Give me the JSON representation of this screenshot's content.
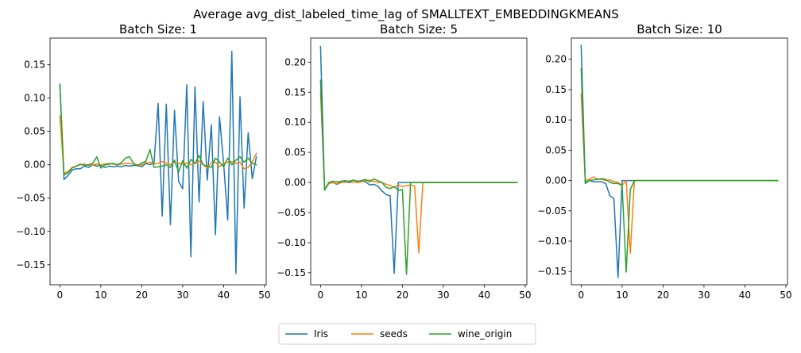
{
  "figure": {
    "suptitle": "Average avg_dist_labeled_time_lag of SMALLTEXT_EMBEDDINGKMEANS"
  },
  "legend": {
    "placement": "bottom-center",
    "items": [
      {
        "name": "Iris",
        "color": "#1f77b4"
      },
      {
        "name": "seeds",
        "color": "#ff7f0e"
      },
      {
        "name": "wine_origin",
        "color": "#2ca02c"
      }
    ]
  },
  "chart_data": [
    {
      "type": "line",
      "title": "Batch Size: 1",
      "xlabel": "",
      "ylabel": "",
      "xlim": [
        -2.4,
        50.4
      ],
      "ylim": [
        -0.18,
        0.19
      ],
      "xticks": [
        0,
        10,
        20,
        30,
        40,
        50
      ],
      "yticks": [
        -0.15,
        -0.1,
        -0.05,
        0.0,
        0.05,
        0.1,
        0.15
      ],
      "ytick_labels": [
        "−0.15",
        "−0.10",
        "−0.05",
        "0.00",
        "0.05",
        "0.10",
        "0.15"
      ],
      "x": [
        0,
        1,
        2,
        3,
        4,
        5,
        6,
        7,
        8,
        9,
        10,
        11,
        12,
        13,
        14,
        15,
        16,
        17,
        18,
        19,
        20,
        21,
        22,
        23,
        24,
        25,
        26,
        27,
        28,
        29,
        30,
        31,
        32,
        33,
        34,
        35,
        36,
        37,
        38,
        39,
        40,
        41,
        42,
        43,
        44,
        45,
        46,
        47,
        48
      ],
      "series": [
        {
          "name": "Iris",
          "color": "#1f77b4",
          "values": [
            0.12,
            -0.022,
            -0.016,
            -0.008,
            -0.006,
            -0.006,
            -0.002,
            -0.004,
            0.0,
            -0.002,
            -0.001,
            -0.004,
            -0.002,
            -0.003,
            -0.002,
            -0.003,
            -0.001,
            -0.002,
            -0.001,
            -0.001,
            -0.003,
            0.002,
            0.0,
            0.003,
            0.092,
            -0.077,
            0.091,
            -0.09,
            0.082,
            -0.025,
            -0.036,
            0.12,
            -0.138,
            0.117,
            -0.056,
            0.095,
            -0.023,
            0.06,
            -0.105,
            0.072,
            0.002,
            -0.083,
            0.17,
            -0.163,
            0.102,
            -0.065,
            0.048,
            -0.021,
            0.012
          ]
        },
        {
          "name": "seeds",
          "color": "#ff7f0e",
          "values": [
            0.073,
            -0.013,
            -0.01,
            -0.004,
            -0.002,
            0.0,
            0.001,
            -0.001,
            0.0,
            0.001,
            0.0,
            0.001,
            0.002,
            0.001,
            0.0,
            0.001,
            0.002,
            0.002,
            0.001,
            0.0,
            0.0,
            0.003,
            0.004,
            0.001,
            0.002,
            0.005,
            0.003,
            0.0,
            0.004,
            0.002,
            0.001,
            0.003,
            0.0,
            0.002,
            0.006,
            0.0,
            -0.005,
            0.003,
            0.004,
            -0.003,
            0.002,
            0.004,
            0.005,
            0.002,
            0.004,
            -0.006,
            -0.004,
            0.004,
            0.017
          ]
        },
        {
          "name": "wine_origin",
          "color": "#2ca02c",
          "values": [
            0.121,
            -0.015,
            -0.012,
            -0.005,
            -0.002,
            0.001,
            -0.001,
            0.0,
            0.002,
            0.012,
            -0.005,
            0.0,
            0.001,
            0.002,
            0.0,
            0.003,
            0.01,
            0.012,
            0.002,
            -0.002,
            0.003,
            0.005,
            0.023,
            -0.004,
            -0.003,
            -0.002,
            0.0,
            -0.004,
            0.007,
            -0.011,
            0.006,
            -0.005,
            0.008,
            0.002,
            0.014,
            0.0,
            -0.002,
            -0.004,
            0.01,
            0.004,
            -0.003,
            0.01,
            0.0,
            0.007,
            0.012,
            0.004,
            0.01,
            0.002,
            0.0
          ]
        }
      ]
    },
    {
      "type": "line",
      "title": "Batch Size: 5",
      "xlabel": "",
      "ylabel": "",
      "xlim": [
        -2.4,
        50.4
      ],
      "ylim": [
        -0.17,
        0.24
      ],
      "xticks": [
        0,
        10,
        20,
        30,
        40,
        50
      ],
      "yticks": [
        -0.15,
        -0.1,
        -0.05,
        0.0,
        0.05,
        0.1,
        0.15,
        0.2
      ],
      "ytick_labels": [
        "−0.15",
        "−0.10",
        "−0.05",
        "0.00",
        "0.05",
        "0.10",
        "0.15",
        "0.20"
      ],
      "x": [
        0,
        1,
        2,
        3,
        4,
        5,
        6,
        7,
        8,
        9,
        10,
        11,
        12,
        13,
        14,
        15,
        16,
        17,
        18,
        19,
        20,
        21,
        22,
        23,
        24,
        25,
        26,
        27,
        28,
        29,
        30,
        31,
        32,
        33,
        34,
        35,
        36,
        37,
        38,
        39,
        40,
        41,
        42,
        43,
        44,
        45,
        46,
        47,
        48
      ],
      "series": [
        {
          "name": "Iris",
          "color": "#1f77b4",
          "values": [
            0.226,
            -0.012,
            -0.002,
            0.0,
            -0.003,
            0.0,
            0.001,
            0.0,
            0.001,
            0.0,
            0.002,
            0.001,
            -0.004,
            -0.003,
            -0.006,
            -0.014,
            -0.02,
            -0.022,
            -0.151,
            0.0,
            0.0,
            0.0,
            0.0,
            0.0,
            0.0,
            0.0,
            0.0,
            0.0,
            0.0,
            0.0,
            0.0,
            0.0,
            0.0,
            0.0,
            0.0,
            0.0,
            0.0,
            0.0,
            0.0,
            0.0,
            0.0,
            0.0,
            0.0,
            0.0,
            0.0,
            0.0,
            0.0,
            0.0,
            0.0
          ]
        },
        {
          "name": "seeds",
          "color": "#ff7f0e",
          "values": [
            0.15,
            -0.01,
            -0.002,
            0.0,
            -0.002,
            0.001,
            0.0,
            0.002,
            0.001,
            0.0,
            0.001,
            0.003,
            0.004,
            0.002,
            0.0,
            0.0,
            -0.003,
            -0.005,
            -0.008,
            -0.004,
            -0.007,
            -0.005,
            -0.004,
            -0.006,
            -0.117,
            0.0,
            0.0,
            0.0,
            0.0,
            0.0,
            0.0,
            0.0,
            0.0,
            0.0,
            0.0,
            0.0,
            0.0,
            0.0,
            0.0,
            0.0,
            0.0,
            0.0,
            0.0,
            0.0,
            0.0,
            0.0,
            0.0,
            0.0,
            0.0
          ]
        },
        {
          "name": "wine_origin",
          "color": "#2ca02c",
          "values": [
            0.17,
            -0.013,
            0.0,
            0.002,
            0.001,
            0.002,
            0.003,
            0.002,
            0.004,
            0.002,
            0.003,
            0.005,
            0.001,
            0.006,
            0.003,
            0.0,
            -0.008,
            -0.01,
            -0.007,
            -0.013,
            -0.012,
            -0.153,
            0.0,
            0.0,
            0.0,
            0.0,
            0.0,
            0.0,
            0.0,
            0.0,
            0.0,
            0.0,
            0.0,
            0.0,
            0.0,
            0.0,
            0.0,
            0.0,
            0.0,
            0.0,
            0.0,
            0.0,
            0.0,
            0.0,
            0.0,
            0.0,
            0.0,
            0.0,
            0.0
          ]
        }
      ]
    },
    {
      "type": "line",
      "title": "Batch Size: 10",
      "xlabel": "",
      "ylabel": "",
      "xlim": [
        -2.4,
        50.4
      ],
      "ylim": [
        -0.172,
        0.235
      ],
      "xticks": [
        0,
        10,
        20,
        30,
        40,
        50
      ],
      "yticks": [
        -0.15,
        -0.1,
        -0.05,
        0.0,
        0.05,
        0.1,
        0.15,
        0.2
      ],
      "ytick_labels": [
        "−0.15",
        "−0.10",
        "−0.05",
        "0.00",
        "0.05",
        "0.10",
        "0.15",
        "0.20"
      ],
      "x": [
        0,
        1,
        2,
        3,
        4,
        5,
        6,
        7,
        8,
        9,
        10,
        11,
        12,
        13,
        14,
        15,
        16,
        17,
        18,
        19,
        20,
        21,
        22,
        23,
        24,
        25,
        26,
        27,
        28,
        29,
        30,
        31,
        32,
        33,
        34,
        35,
        36,
        37,
        38,
        39,
        40,
        41,
        42,
        43,
        44,
        45,
        46,
        47,
        48
      ],
      "series": [
        {
          "name": "Iris",
          "color": "#1f77b4",
          "values": [
            0.223,
            -0.003,
            0.0,
            -0.002,
            -0.002,
            -0.002,
            -0.005,
            -0.025,
            -0.03,
            -0.16,
            0.0,
            0.0,
            0.0,
            0.0,
            0.0,
            0.0,
            0.0,
            0.0,
            0.0,
            0.0,
            0.0,
            0.0,
            0.0,
            0.0,
            0.0,
            0.0,
            0.0,
            0.0,
            0.0,
            0.0,
            0.0,
            0.0,
            0.0,
            0.0,
            0.0,
            0.0,
            0.0,
            0.0,
            0.0,
            0.0,
            0.0,
            0.0,
            0.0,
            0.0,
            0.0,
            0.0,
            0.0,
            0.0,
            0.0
          ]
        },
        {
          "name": "seeds",
          "color": "#ff7f0e",
          "values": [
            0.143,
            0.0,
            0.002,
            0.006,
            0.002,
            0.002,
            0.0,
            0.001,
            -0.002,
            -0.003,
            -0.008,
            0.0,
            -0.12,
            0.0,
            0.0,
            0.0,
            0.0,
            0.0,
            0.0,
            0.0,
            0.0,
            0.0,
            0.0,
            0.0,
            0.0,
            0.0,
            0.0,
            0.0,
            0.0,
            0.0,
            0.0,
            0.0,
            0.0,
            0.0,
            0.0,
            0.0,
            0.0,
            0.0,
            0.0,
            0.0,
            0.0,
            0.0,
            0.0,
            0.0,
            0.0,
            0.0,
            0.0,
            0.0,
            0.0
          ]
        },
        {
          "name": "wine_origin",
          "color": "#2ca02c",
          "values": [
            0.185,
            -0.005,
            0.0,
            0.001,
            0.002,
            0.003,
            0.002,
            -0.003,
            -0.005,
            -0.005,
            -0.008,
            -0.151,
            -0.015,
            0.0,
            0.0,
            0.0,
            0.0,
            0.0,
            0.0,
            0.0,
            0.0,
            0.0,
            0.0,
            0.0,
            0.0,
            0.0,
            0.0,
            0.0,
            0.0,
            0.0,
            0.0,
            0.0,
            0.0,
            0.0,
            0.0,
            0.0,
            0.0,
            0.0,
            0.0,
            0.0,
            0.0,
            0.0,
            0.0,
            0.0,
            0.0,
            0.0,
            0.0,
            0.0,
            0.0
          ]
        }
      ]
    }
  ]
}
